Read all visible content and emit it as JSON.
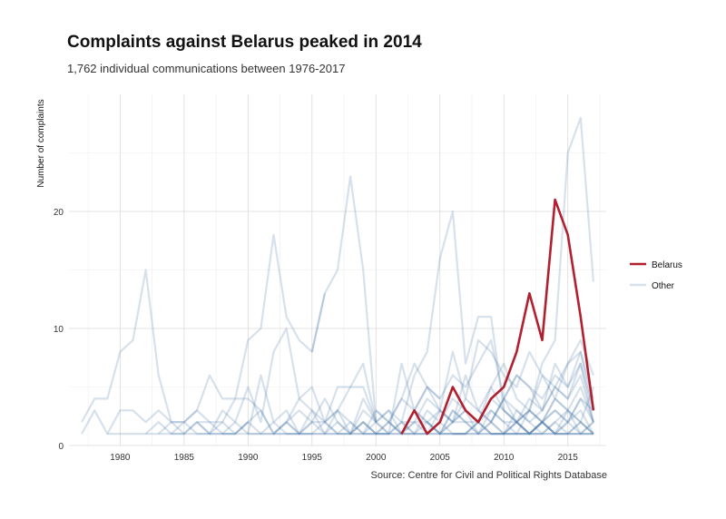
{
  "title": "Complaints against Belarus peaked in 2014",
  "subtitle": "1,762 individual communications between 1976-2017",
  "caption": "Source: Centre for Civil and Political Rights Database",
  "colors": {
    "belarus": "#B2202F",
    "other": "#4A77A8",
    "grid": "#e3e3e3"
  },
  "chart_data": {
    "type": "line",
    "xlabel": "",
    "ylabel": "Number of complaints",
    "xlim": [
      1976,
      2018
    ],
    "ylim": [
      0,
      30
    ],
    "x_ticks": [
      1980,
      1985,
      1990,
      1995,
      2000,
      2005,
      2010,
      2015
    ],
    "y_ticks": [
      0,
      10,
      20
    ],
    "legend": {
      "position": "right",
      "entries": [
        "Belarus",
        "Other"
      ]
    },
    "highlight": {
      "name": "Belarus",
      "x": [
        2002,
        2003,
        2004,
        2005,
        2006,
        2007,
        2008,
        2009,
        2010,
        2011,
        2012,
        2013,
        2014,
        2015,
        2016,
        2017
      ],
      "values": [
        1,
        3,
        1,
        2,
        5,
        3,
        2,
        4,
        5,
        8,
        13,
        9,
        21,
        18,
        11,
        3
      ]
    },
    "others": [
      {
        "x": [
          1977,
          1978,
          1979,
          1980,
          1981,
          1982,
          1983,
          1984,
          1985,
          1986,
          1987,
          1988,
          1989,
          1990,
          1991,
          1992,
          1993,
          1994,
          1995,
          1996
        ],
        "values": [
          2,
          4,
          4,
          8,
          9,
          15,
          6,
          2,
          2,
          3,
          2,
          2,
          4,
          9,
          10,
          18,
          11,
          9,
          8,
          13
        ]
      },
      {
        "x": [
          1995,
          1996,
          1997,
          1998,
          1999,
          2000
        ],
        "values": [
          8,
          13,
          15,
          23,
          15,
          2
        ]
      },
      {
        "x": [
          2002,
          2003,
          2004,
          2005,
          2006,
          2007,
          2008,
          2009,
          2010,
          2011,
          2012,
          2013,
          2014,
          2015,
          2016,
          2017
        ],
        "values": [
          2,
          6,
          8,
          16,
          20,
          7,
          11,
          11,
          3,
          2,
          3,
          7,
          9,
          25,
          28,
          14
        ]
      },
      {
        "x": [
          1977,
          1978,
          1979,
          1980,
          1981,
          1982,
          1983,
          1984,
          1985,
          1986,
          1987,
          1988,
          1989,
          1990
        ],
        "values": [
          1,
          3,
          1,
          3,
          3,
          2,
          3,
          2,
          1,
          2,
          2,
          1,
          1,
          2
        ]
      },
      {
        "x": [
          1983,
          1984,
          1985,
          1986,
          1987,
          1988,
          1989,
          1990,
          1991,
          1992,
          1993,
          1994,
          1995,
          1996,
          1997,
          1998,
          1999,
          2000
        ],
        "values": [
          1,
          2,
          2,
          3,
          6,
          4,
          4,
          4,
          3,
          1,
          2,
          4,
          5,
          2,
          5,
          5,
          5,
          2
        ]
      },
      {
        "x": [
          1986,
          1987,
          1988,
          1989,
          1990,
          1991,
          1992,
          1993,
          1994,
          1995,
          1996,
          1997,
          1998,
          1999,
          2000,
          2001
        ],
        "values": [
          2,
          1,
          3,
          2,
          5,
          2,
          8,
          10,
          4,
          3,
          2,
          3,
          5,
          7,
          2,
          1
        ]
      },
      {
        "x": [
          1990,
          1991,
          1992,
          1993,
          1994,
          1995,
          1996,
          1997,
          1998,
          1999,
          2000,
          2001,
          2002,
          2003,
          2004,
          2005
        ],
        "values": [
          1,
          6,
          2,
          3,
          1,
          2,
          4,
          2,
          1,
          3,
          2,
          1,
          7,
          3,
          5,
          4
        ]
      },
      {
        "x": [
          2001,
          2002,
          2003,
          2004,
          2005,
          2006,
          2007,
          2008,
          2009,
          2010,
          2011,
          2012,
          2013,
          2014,
          2015,
          2016,
          2017
        ],
        "values": [
          2,
          4,
          7,
          5,
          3,
          8,
          4,
          9,
          8,
          6,
          5,
          8,
          6,
          4,
          7,
          9,
          6
        ]
      },
      {
        "x": [
          2003,
          2004,
          2005,
          2006,
          2007,
          2008,
          2009,
          2010,
          2011,
          2012,
          2013,
          2014,
          2015,
          2016,
          2017
        ],
        "values": [
          3,
          5,
          4,
          6,
          5,
          7,
          9,
          4,
          6,
          5,
          3,
          7,
          5,
          8,
          3
        ]
      },
      {
        "x": [
          1984,
          1985,
          1986,
          1987,
          1988,
          1989,
          1990,
          1991,
          1992,
          1993,
          1994,
          1995,
          1996,
          1997,
          1998,
          1999,
          2000,
          2001,
          2002,
          2003,
          2004,
          2005,
          2006,
          2007,
          2008,
          2009,
          2010,
          2011,
          2012,
          2013,
          2014,
          2015,
          2016,
          2017
        ],
        "values": [
          1,
          2,
          1,
          1,
          2,
          1,
          2,
          3,
          1,
          2,
          3,
          2,
          1,
          3,
          2,
          1,
          2,
          3,
          2,
          1,
          3,
          2,
          4,
          3,
          2,
          5,
          3,
          2,
          4,
          3,
          5,
          4,
          6,
          2
        ]
      },
      {
        "x": [
          1979,
          1980,
          1981,
          1982,
          1983,
          1984,
          1985,
          1986,
          1987,
          1988,
          1989,
          1990,
          1991,
          1992,
          1993,
          1994,
          1995,
          1996,
          1997,
          1998,
          1999,
          2000,
          2001,
          2002,
          2003,
          2004,
          2005,
          2006,
          2007,
          2008,
          2009,
          2010,
          2011,
          2012,
          2013,
          2014,
          2015,
          2016,
          2017
        ],
        "values": [
          1,
          1,
          1,
          1,
          2,
          1,
          1,
          2,
          1,
          1,
          1,
          2,
          1,
          1,
          2,
          1,
          1,
          2,
          1,
          1,
          2,
          1,
          1,
          2,
          2,
          1,
          3,
          2,
          2,
          1,
          3,
          2,
          2,
          3,
          2,
          4,
          3,
          5,
          2
        ]
      },
      {
        "x": [
          1996,
          1997,
          1998,
          1999,
          2000,
          2001,
          2002,
          2003,
          2004,
          2005,
          2006,
          2007,
          2008,
          2009,
          2010,
          2011,
          2012,
          2013,
          2014,
          2015,
          2016,
          2017
        ],
        "values": [
          2,
          3,
          1,
          4,
          2,
          3,
          1,
          2,
          4,
          3,
          2,
          6,
          3,
          5,
          7,
          4,
          3,
          6,
          5,
          7,
          8,
          4
        ]
      },
      {
        "x": [
          2004,
          2005,
          2006,
          2007,
          2008,
          2009,
          2010,
          2011,
          2012,
          2013,
          2014,
          2015,
          2016,
          2017
        ],
        "values": [
          2,
          3,
          2,
          4,
          3,
          2,
          4,
          6,
          5,
          4,
          6,
          5,
          7,
          2
        ]
      },
      {
        "x": [
          1988,
          1989,
          1990,
          1991,
          1992,
          1993,
          1994,
          1995,
          1996,
          1997,
          1998,
          1999,
          2000,
          2001,
          2002,
          2003,
          2004,
          2005,
          2006,
          2007,
          2008,
          2009,
          2010,
          2011,
          2012,
          2013,
          2014,
          2015,
          2016,
          2017
        ],
        "values": [
          1,
          2,
          1,
          1,
          2,
          1,
          1,
          2,
          2,
          1,
          2,
          1,
          3,
          2,
          1,
          2,
          2,
          1,
          3,
          2,
          2,
          3,
          2,
          1,
          3,
          2,
          3,
          2,
          4,
          3
        ]
      },
      {
        "x": [
          1992,
          1993,
          1994,
          1995,
          1996,
          1997,
          1998,
          1999,
          2000,
          2001,
          2002,
          2003,
          2004,
          2005,
          2006,
          2007,
          2008,
          2009,
          2010,
          2011,
          2012,
          2013,
          2014,
          2015,
          2016,
          2017
        ],
        "values": [
          1,
          1,
          1,
          1,
          1,
          1,
          1,
          1,
          1,
          1,
          1,
          1,
          1,
          1,
          1,
          1,
          1,
          1,
          1,
          1,
          1,
          1,
          1,
          1,
          1,
          1
        ]
      },
      {
        "x": [
          1982,
          1983,
          1984,
          1985,
          1986,
          1987,
          1988,
          1989,
          1990,
          1991,
          1992,
          1993,
          1994,
          1995,
          1996,
          1997,
          1998,
          1999,
          2000,
          2001,
          2002,
          2003,
          2004,
          2005,
          2006,
          2007,
          2008,
          2009,
          2010,
          2011,
          2012,
          2013,
          2014,
          2015,
          2016,
          2017
        ],
        "values": [
          1,
          1,
          1,
          1,
          1,
          1,
          1,
          1,
          1,
          1,
          1,
          1,
          1,
          1,
          1,
          1,
          1,
          1,
          1,
          1,
          1,
          1,
          1,
          1,
          1,
          1,
          1,
          1,
          1,
          1,
          1,
          1,
          1,
          1,
          1,
          1
        ]
      },
      {
        "x": [
          1998,
          1999,
          2000,
          2001,
          2002,
          2003,
          2004,
          2005,
          2006,
          2007,
          2008,
          2009,
          2010,
          2011,
          2012,
          2013,
          2014,
          2015,
          2016,
          2017
        ],
        "values": [
          1,
          2,
          1,
          2,
          1,
          3,
          2,
          1,
          2,
          3,
          1,
          2,
          4,
          2,
          3,
          2,
          1,
          3,
          2,
          1
        ]
      },
      {
        "x": [
          2005,
          2006,
          2007,
          2008,
          2009,
          2010,
          2011,
          2012,
          2013,
          2014,
          2015,
          2016,
          2017
        ],
        "values": [
          1,
          2,
          3,
          2,
          4,
          3,
          2,
          1,
          2,
          3,
          2,
          4,
          2
        ]
      },
      {
        "x": [
          1993,
          1994,
          1995,
          1996,
          1997,
          1998,
          1999,
          2000,
          2001,
          2002,
          2003,
          2004,
          2005,
          2006,
          2007,
          2008,
          2009,
          2010,
          2011,
          2012,
          2013,
          2014,
          2015,
          2016,
          2017
        ],
        "values": [
          2,
          1,
          3,
          1,
          2,
          1,
          2,
          1,
          1,
          2,
          1,
          1,
          2,
          1,
          1,
          2,
          1,
          1,
          2,
          1,
          1,
          2,
          1,
          1,
          2
        ]
      },
      {
        "x": [
          2006,
          2007,
          2008,
          2009,
          2010,
          2011,
          2012,
          2013,
          2014,
          2015,
          2016,
          2017
        ],
        "values": [
          1,
          1,
          2,
          1,
          1,
          2,
          1,
          2,
          1,
          2,
          3,
          1
        ]
      },
      {
        "x": [
          2008,
          2009,
          2010,
          2011,
          2012,
          2013,
          2014,
          2015,
          2016,
          2017
        ],
        "values": [
          3,
          2,
          1,
          2,
          1,
          2,
          4,
          3,
          2,
          5
        ]
      },
      {
        "x": [
          2009,
          2010,
          2011,
          2012,
          2013,
          2014,
          2015,
          2016,
          2017
        ],
        "values": [
          2,
          4,
          3,
          2,
          3,
          5,
          4,
          7,
          3
        ]
      },
      {
        "x": [
          1999,
          2000,
          2001,
          2002,
          2003,
          2004,
          2005,
          2006,
          2007,
          2008,
          2009,
          2010,
          2011,
          2012,
          2013,
          2014,
          2015,
          2016,
          2017
        ],
        "values": [
          1,
          1,
          2,
          1,
          1,
          2,
          1,
          1,
          1,
          2,
          1,
          1,
          1,
          1,
          2,
          1,
          1,
          2,
          1
        ]
      },
      {
        "x": [
          2010,
          2011,
          2012,
          2013,
          2014,
          2015,
          2016,
          2017
        ],
        "values": [
          1,
          1,
          1,
          2,
          1,
          1,
          2,
          1
        ]
      },
      {
        "x": [
          2011,
          2012,
          2013,
          2014,
          2015,
          2016,
          2017
        ],
        "values": [
          2,
          1,
          2,
          1,
          2,
          1,
          1
        ]
      },
      {
        "x": [
          2000,
          2001,
          2002,
          2003,
          2004,
          2005,
          2006,
          2007,
          2008,
          2009,
          2010,
          2011,
          2012,
          2013,
          2014,
          2015,
          2016,
          2017
        ],
        "values": [
          3,
          2,
          4,
          3,
          2,
          1,
          3,
          2,
          1,
          2,
          1,
          3,
          2,
          1,
          2,
          3,
          1,
          2
        ]
      }
    ]
  }
}
